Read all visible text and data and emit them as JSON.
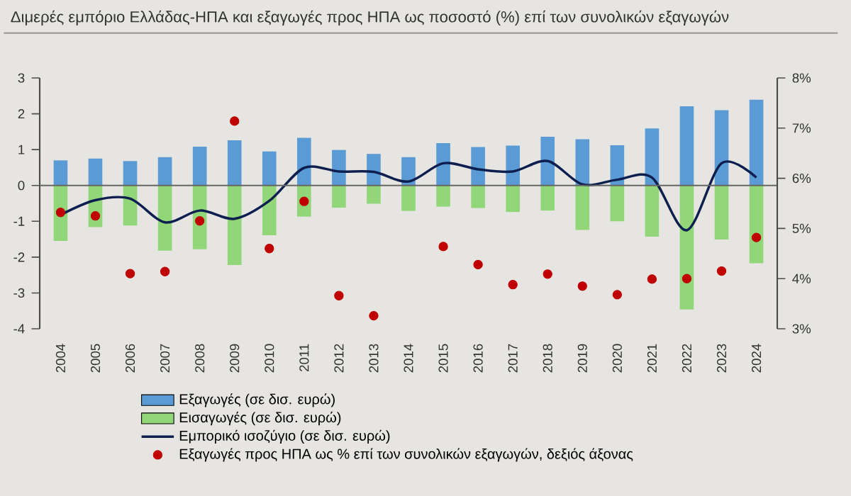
{
  "chart_data": {
    "type": "bar",
    "title": "Διμερές εμπόριο Ελλάδας-ΗΠΑ και εξαγωγές προς ΗΠΑ ως ποσοστό (%) επί των συνολικών εξαγωγών",
    "categories": [
      "2004",
      "2005",
      "2006",
      "2007",
      "2008",
      "2009",
      "2010",
      "2011",
      "2012",
      "2013",
      "2014",
      "2015",
      "2016",
      "2017",
      "2018",
      "2019",
      "2020",
      "2021",
      "2022",
      "2023",
      "2024"
    ],
    "series": [
      {
        "name": "Εξαγωγές (σε δισ. ευρώ)",
        "color": "#5b9bd5",
        "values": [
          0.7,
          0.75,
          0.68,
          0.79,
          1.08,
          1.26,
          0.95,
          1.33,
          0.99,
          0.88,
          0.79,
          1.18,
          1.07,
          1.11,
          1.36,
          1.29,
          1.12,
          1.59,
          2.21,
          2.1,
          2.39
        ]
      },
      {
        "name": "Εισαγωγές (σε δισ. ευρώ)",
        "color": "#92d67a",
        "values": [
          -1.55,
          -1.16,
          -1.12,
          -1.82,
          -1.78,
          -2.22,
          -1.39,
          -0.87,
          -0.62,
          -0.51,
          -0.71,
          -0.59,
          -0.63,
          -0.74,
          -0.7,
          -1.24,
          -1.0,
          -1.43,
          -3.46,
          -1.51,
          -2.17
        ]
      },
      {
        "name": "Εμπορικό ισοζύγιο (σε δισ. ευρώ)",
        "type": "line",
        "color": "#0d1f4f",
        "marker": "none",
        "values": [
          -0.82,
          -0.41,
          -0.37,
          -1.03,
          -0.7,
          -0.93,
          -0.43,
          0.49,
          0.39,
          0.38,
          0.11,
          0.62,
          0.45,
          0.39,
          0.68,
          0.03,
          0.16,
          0.22,
          -1.25,
          0.62,
          0.22
        ]
      },
      {
        "name": "Εξαγωγές προς ΗΠΑ ως % επί των συνολικών εξαγωγών, δεξιός άξονας",
        "type": "scatter",
        "axis": "y2",
        "marker": "circle",
        "color": "#c00000",
        "values": [
          5.32,
          5.25,
          4.1,
          4.14,
          5.15,
          7.14,
          4.6,
          5.54,
          3.66,
          3.26,
          null,
          4.64,
          4.28,
          3.88,
          4.09,
          3.85,
          3.68,
          3.99,
          4.0,
          4.15,
          4.82
        ]
      }
    ],
    "ylim": [
      -4,
      3
    ],
    "yticks": [
      -4,
      -3,
      -2,
      -1,
      0,
      1,
      2,
      3
    ],
    "y2lim": [
      3,
      8
    ],
    "y2ticks": [
      {
        "value": 3,
        "label": "3%"
      },
      {
        "value": 4,
        "label": "4%"
      },
      {
        "value": 5,
        "label": "5%"
      },
      {
        "value": 6,
        "label": "6%"
      },
      {
        "value": 7,
        "label": "7%"
      },
      {
        "value": 8,
        "label": "8%"
      }
    ],
    "stacked": true,
    "legend": "bottom"
  }
}
